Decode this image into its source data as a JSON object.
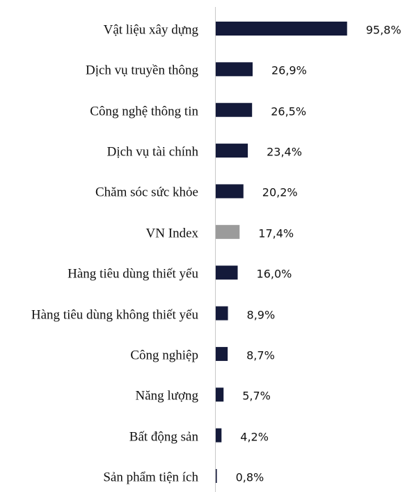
{
  "chart_data": {
    "type": "hbar",
    "categories": [
      "Vật liệu xây dựng",
      "Dịch vụ truyền thông",
      "Công nghệ thông tin",
      "Dịch vụ tài chính",
      "Chăm sóc sức khỏe",
      "VN Index",
      "Hàng tiêu dùng thiết yếu",
      "Hàng tiêu dùng không thiết yếu",
      "Công nghiệp",
      "Năng lượng",
      "Bất động sản",
      "Sản phẩm tiện ích"
    ],
    "values": [
      95.8,
      26.9,
      26.5,
      23.4,
      20.2,
      17.4,
      16.0,
      8.9,
      8.7,
      5.7,
      4.2,
      0.8
    ],
    "value_labels": [
      "95,8%",
      "26,9%",
      "26,5%",
      "23,4%",
      "20,2%",
      "17,4%",
      "16,0%",
      "8,9%",
      "8,7%",
      "5,7%",
      "4,2%",
      "0,8%"
    ],
    "colors": [
      "#141a3a",
      "#141a3a",
      "#141a3a",
      "#141a3a",
      "#141a3a",
      "#9b9b9b",
      "#141a3a",
      "#141a3a",
      "#141a3a",
      "#141a3a",
      "#141a3a",
      "#141a3a"
    ],
    "xlim": [
      0,
      100
    ]
  }
}
